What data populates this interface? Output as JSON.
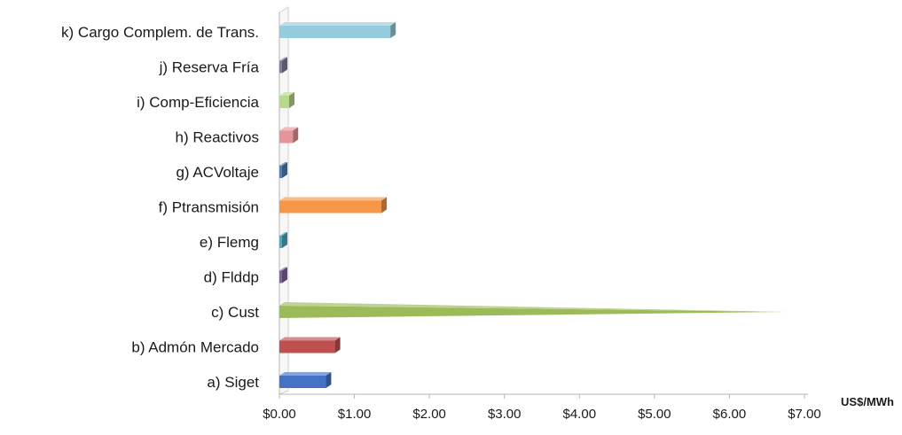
{
  "chart_data": {
    "type": "bar",
    "orientation": "horizontal",
    "style": "3d",
    "xlabel": "US$/MWh",
    "xlim": [
      0,
      7
    ],
    "xticks": [
      "$0.00",
      "$1.00",
      "$2.00",
      "$3.00",
      "$4.00",
      "$5.00",
      "$6.00",
      "$7.00"
    ],
    "grid": false,
    "legend": "none",
    "categories": [
      "a) Siget",
      "b) Admón Mercado",
      "c) Cust",
      "d) Flddp",
      "e) Flemg",
      "f) Ptransmisión",
      "g) ACVoltaje",
      "h) Reactivos",
      "i) Comp-Eficiencia",
      "j) Reserva Fría",
      "k) Cargo Complem. de Trans."
    ],
    "values": [
      0.62,
      0.74,
      6.75,
      0.02,
      0.02,
      1.36,
      0.02,
      0.18,
      0.13,
      0.02,
      1.48
    ],
    "colors": [
      "#4472C4",
      "#C0504D",
      "#9BBB59",
      "#8064A2",
      "#4BACC6",
      "#F79646",
      "#4F81BD",
      "#E6949A",
      "#B8D98A",
      "#7F7F9F",
      "#93CDDD"
    ]
  }
}
